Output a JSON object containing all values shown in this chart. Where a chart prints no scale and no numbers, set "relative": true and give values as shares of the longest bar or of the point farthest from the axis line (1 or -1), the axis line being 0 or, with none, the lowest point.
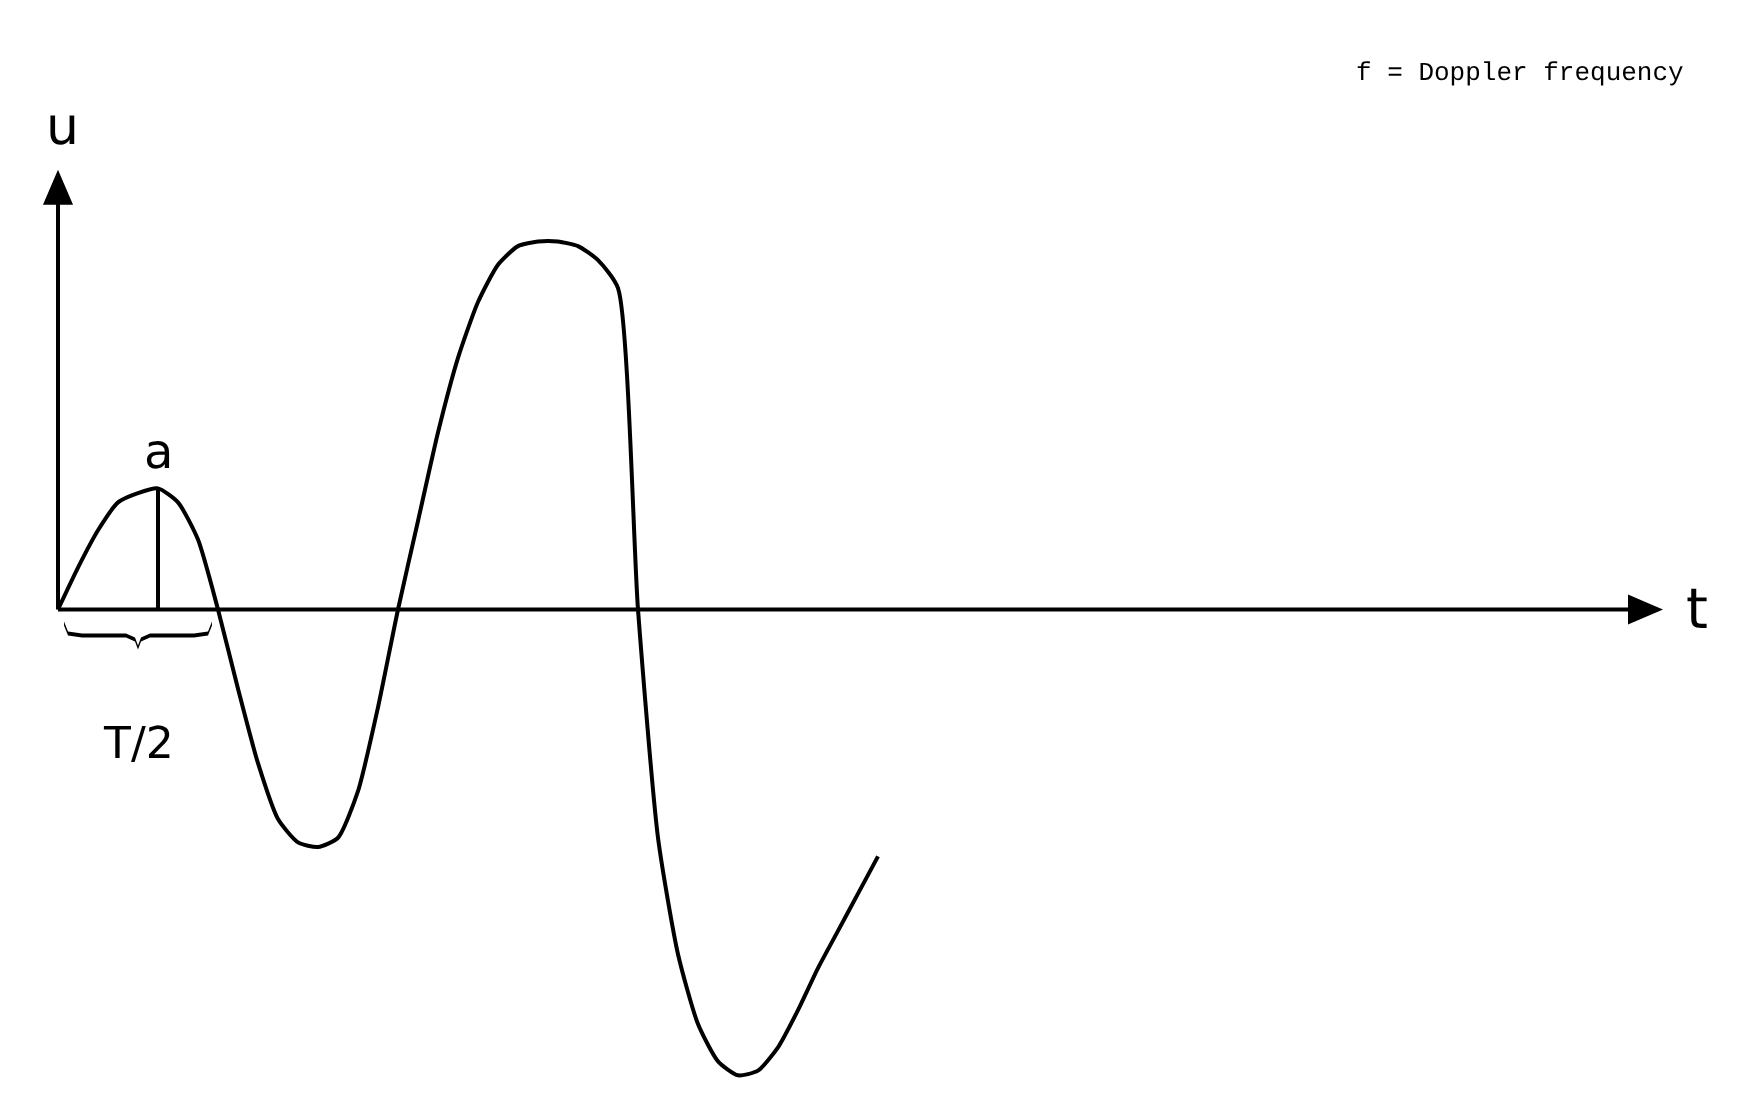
{
  "chart_data": {
    "type": "line",
    "relative": true,
    "ylabel": "u",
    "color": "#000000",
    "marker": "none",
    "line_style": "solid",
    "grid": false,
    "annotations": [
      "f = Doppler frequency",
      "a",
      "T/2",
      "t"
    ],
    "categories": [
      null,
      null,
      null,
      null,
      null,
      null,
      null,
      null,
      null,
      null,
      null,
      null,
      null,
      null,
      null,
      null,
      null,
      null,
      null,
      null,
      null,
      null,
      null,
      null,
      null,
      null,
      null,
      null,
      null,
      null,
      null,
      null,
      null,
      null,
      null,
      null,
      null,
      null,
      null,
      null,
      null,
      null
    ],
    "values": [
      0,
      0.09,
      0.17,
      0.23,
      0.25,
      0.26,
      0.23,
      0.15,
      0,
      -0.17,
      -0.33,
      -0.45,
      -0.5,
      -0.51,
      -0.49,
      -0.39,
      -0.21,
      0,
      0.19,
      0.38,
      0.54,
      0.66,
      0.74,
      0.78,
      0.79,
      0.79,
      0.78,
      0.75,
      0.69,
      0,
      -0.49,
      -0.74,
      -0.89,
      -0.97,
      -1,
      -0.99,
      -0.94,
      -0.86,
      -0.77,
      -0.69,
      -0.61,
      -0.53
    ]
  }
}
